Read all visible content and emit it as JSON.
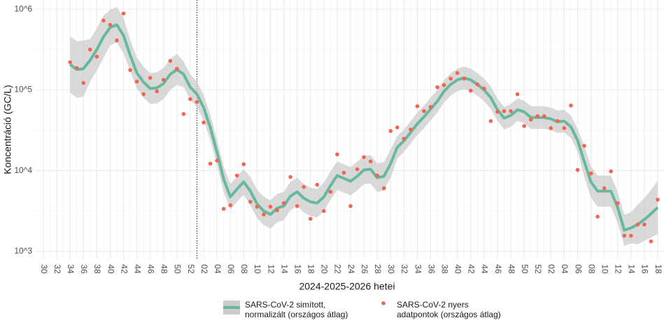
{
  "chart_data": {
    "type": "line",
    "x_label": "2024-2025-2026 hetei",
    "y_label": "Koncentráció (GC/L)",
    "log_scale": true,
    "grid": true,
    "legend": "bottom",
    "ylim": [
      800,
      1300000
    ],
    "yticks": [
      {
        "value": 1000,
        "label": "10^3"
      },
      {
        "value": 10000,
        "label": "10^4"
      },
      {
        "value": 100000,
        "label": "10^5"
      },
      {
        "value": 1000000,
        "label": "10^6"
      }
    ],
    "vline_at": 23,
    "categories": [
      "30",
      null,
      "32",
      null,
      "34",
      null,
      "36",
      null,
      "38",
      null,
      "40",
      null,
      "42",
      null,
      "44",
      null,
      "46",
      null,
      "48",
      null,
      "50",
      null,
      "52",
      null,
      "02",
      null,
      "04",
      null,
      "06",
      null,
      "08",
      null,
      "10",
      null,
      "12",
      null,
      "14",
      null,
      "16",
      null,
      "18",
      null,
      "20",
      null,
      "22",
      null,
      "24",
      null,
      "26",
      null,
      "28",
      null,
      "30",
      null,
      "32",
      null,
      "34",
      null,
      "36",
      null,
      "38",
      null,
      "40",
      null,
      "42",
      null,
      "44",
      null,
      "46",
      null,
      "48",
      null,
      "50",
      null,
      "52",
      null,
      "02",
      null,
      "04",
      null,
      "06",
      null,
      "08",
      null,
      "10",
      null,
      "12",
      null,
      "14",
      null,
      "16",
      null,
      "18"
    ],
    "series": [
      {
        "name": "SARS-CoV-2 simított,\n normalizált (országos átlag)",
        "kind": "smooth",
        "color": "#66b89e",
        "band_color": "#cccccc",
        "values": [
          null,
          null,
          null,
          null,
          207000,
          179000,
          183000,
          233000,
          316000,
          455000,
          592000,
          641000,
          473000,
          269000,
          162000,
          125000,
          104000,
          106000,
          120000,
          156000,
          179000,
          156000,
          108000,
          88500,
          60400,
          34300,
          16900,
          7850,
          4730,
          5910,
          7240,
          5570,
          3870,
          3160,
          2860,
          3430,
          3640,
          4830,
          5460,
          4550,
          4110,
          3950,
          4730,
          6540,
          8690,
          8010,
          7390,
          8510,
          10200,
          10400,
          8170,
          8510,
          12200,
          19500,
          23400,
          29800,
          37900,
          46400,
          58000,
          72400,
          96000,
          117000,
          133000,
          141000,
          133000,
          117000,
          100000,
          80100,
          56800,
          44600,
          48300,
          56800,
          53500,
          45500,
          45500,
          45500,
          43700,
          40300,
          41100,
          35000,
          23800,
          13000,
          7240,
          5570,
          5570,
          5570,
          3500,
          1830,
          1950,
          2150,
          2480,
          2920,
          3500
        ],
        "lower": [
          null,
          null,
          null,
          null,
          92000,
          80000,
          82000,
          127000,
          173000,
          249000,
          357000,
          386000,
          285000,
          172000,
          104000,
          80000,
          67000,
          68000,
          77000,
          100000,
          115000,
          108000,
          75000,
          61000,
          42000,
          24000,
          11700,
          5450,
          3280,
          4100,
          5030,
          3710,
          2580,
          2110,
          1910,
          2290,
          2430,
          3220,
          3640,
          3030,
          2740,
          2630,
          3150,
          4360,
          5790,
          5340,
          4930,
          5670,
          6800,
          6930,
          5450,
          5670,
          8130,
          14100,
          17000,
          21600,
          27500,
          33600,
          42000,
          52500,
          69600,
          84800,
          96400,
          102000,
          96400,
          84800,
          72500,
          58000,
          41200,
          32300,
          35000,
          41200,
          38800,
          33000,
          33000,
          33000,
          31700,
          29200,
          29800,
          25400,
          17200,
          8330,
          4640,
          3570,
          3570,
          3570,
          2240,
          1170,
          1250,
          1220,
          1350,
          1480,
          1630
        ],
        "upper": [
          null,
          null,
          null,
          null,
          464000,
          401000,
          410000,
          426000,
          578000,
          833000,
          983000,
          1064000,
          785000,
          420000,
          253000,
          195000,
          162000,
          165000,
          187000,
          243000,
          279000,
          225000,
          156000,
          127000,
          87000,
          49400,
          24300,
          11300,
          6810,
          8510,
          10400,
          8360,
          5810,
          4740,
          4290,
          5150,
          5460,
          7250,
          8190,
          6830,
          6170,
          5930,
          7100,
          9810,
          13000,
          12000,
          11100,
          12800,
          15300,
          15600,
          12300,
          12800,
          18300,
          26900,
          32300,
          41100,
          52300,
          64000,
          80000,
          99900,
          132000,
          161000,
          184000,
          195000,
          184000,
          161000,
          138000,
          111000,
          78400,
          61500,
          66700,
          78400,
          73800,
          62800,
          62800,
          62800,
          60300,
          55600,
          56700,
          48300,
          32800,
          20300,
          11300,
          8690,
          8690,
          8690,
          5460,
          2850,
          3040,
          3780,
          4560,
          5750,
          7530
        ]
      },
      {
        "name": "SARS-CoV-2 nyers\n adatpontok (országos átlag)",
        "kind": "points",
        "color": "#f2654f",
        "values": [
          null,
          null,
          null,
          null,
          220000,
          187000,
          122000,
          316000,
          258000,
          724000,
          641000,
          411000,
          885000,
          176000,
          127000,
          88500,
          141000,
          96000,
          133000,
          229000,
          183000,
          50300,
          76900,
          71000,
          39500,
          12200,
          13300,
          3360,
          3720,
          8690,
          12000,
          4110,
          3570,
          2860,
          3570,
          3230,
          3950,
          8340,
          3640,
          6280,
          2530,
          6680,
          3160,
          5460,
          15900,
          9420,
          3640,
          10400,
          14700,
          13000,
          8690,
          6040,
          31000,
          34300,
          24800,
          32300,
          62800,
          54600,
          61500,
          108000,
          115000,
          138000,
          162000,
          138000,
          98000,
          117000,
          104000,
          41100,
          53500,
          54600,
          54600,
          88500,
          35700,
          42800,
          47300,
          47300,
          33600,
          41100,
          33600,
          64100,
          10200,
          20300,
          9230,
          2690,
          6040,
          9800,
          3950,
          1560,
          1560,
          2150,
          2150,
          1330,
          4370
        ]
      }
    ]
  }
}
